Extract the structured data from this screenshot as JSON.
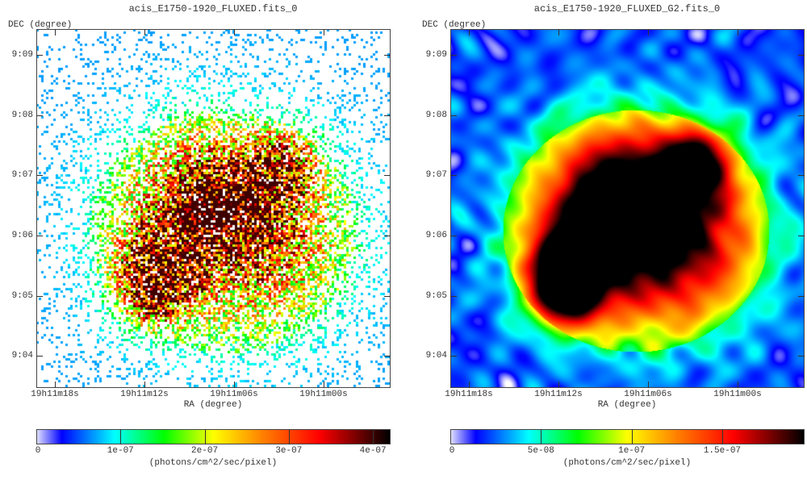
{
  "chart_data": [
    {
      "type": "heatmap",
      "title": "acis_E1750-1920_FLUXED.fits_0",
      "xlabel": "RA (degree)",
      "ylabel": "DEC (degree)",
      "xticks": [
        "19h11m18s",
        "19h11m12s",
        "19h11m06s",
        "19h11m00s"
      ],
      "yticks": [
        "9:09",
        "9:08",
        "9:07",
        "9:06",
        "9:05",
        "9:04"
      ],
      "colorbar": {
        "label": "(photons/cm^2/sec/pixel)",
        "ticks": [
          "0",
          "1e-07",
          "2e-07",
          "3e-07",
          "4e-07"
        ],
        "tick_values": [
          0,
          1e-07,
          2e-07,
          3e-07,
          4e-07
        ],
        "range": [
          0,
          4.2e-07
        ]
      },
      "style": "unsmoothed"
    },
    {
      "type": "heatmap",
      "title": "acis_E1750-1920_FLUXED_G2.fits_0",
      "xlabel": "RA (degree)",
      "ylabel": "DEC (degree)",
      "xticks": [
        "19h11m18s",
        "19h11m12s",
        "19h11m06s",
        "19h11m00s"
      ],
      "yticks": [
        "9:09",
        "9:08",
        "9:07",
        "9:06",
        "9:05",
        "9:04"
      ],
      "colorbar": {
        "label": "(photons/cm^2/sec/pixel)",
        "ticks": [
          "0",
          "5e-08",
          "1e-07",
          "1.5e-07"
        ],
        "tick_values": [
          0,
          5e-08,
          1e-07,
          1.5e-07
        ],
        "range": [
          0,
          1.95e-07
        ]
      },
      "style": "gaussian-smoothed"
    }
  ],
  "colormap": [
    "#ffffff",
    "#0000ff",
    "#00ffff",
    "#00ff00",
    "#ffff00",
    "#ff8000",
    "#ff0000",
    "#000000"
  ]
}
